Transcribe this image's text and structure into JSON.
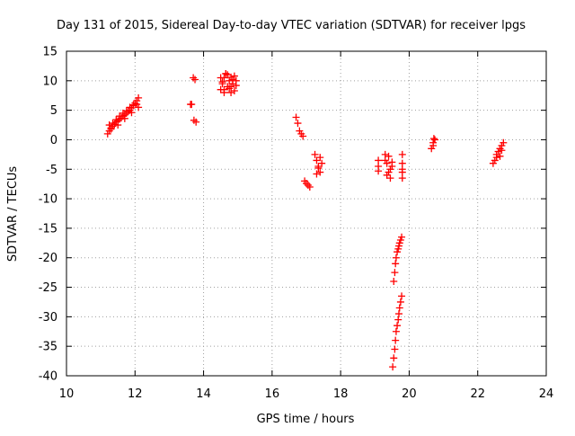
{
  "chart_data": {
    "type": "scatter",
    "title": "Day 131 of 2015, Sidereal Day-to-day VTEC variation (SDTVAR) for receiver lpgs",
    "xlabel": "GPS time / hours",
    "ylabel": "SDTVAR / TECUs",
    "xlim": [
      10,
      24
    ],
    "ylim": [
      -40,
      15
    ],
    "xticks": [
      10,
      12,
      14,
      16,
      18,
      20,
      22,
      24
    ],
    "yticks": [
      15,
      10,
      5,
      0,
      -5,
      -10,
      -15,
      -20,
      -25,
      -30,
      -35,
      -40
    ],
    "grid": true,
    "marker": "+",
    "series": [
      {
        "name": "SDTVAR",
        "color": "#ff0000",
        "x": [
          11.2,
          11.25,
          11.3,
          11.35,
          11.4,
          11.45,
          11.5,
          11.55,
          11.6,
          11.65,
          11.7,
          11.75,
          11.8,
          11.85,
          11.9,
          11.95,
          12.0,
          12.05,
          12.1,
          11.25,
          11.35,
          11.45,
          11.55,
          11.65,
          11.75,
          11.85,
          11.95,
          12.05,
          11.3,
          11.5,
          11.7,
          11.9,
          12.1,
          13.65,
          13.7,
          13.75,
          13.72,
          13.78,
          13.62,
          14.5,
          14.55,
          14.6,
          14.65,
          14.7,
          14.75,
          14.8,
          14.85,
          14.9,
          14.95,
          14.5,
          14.6,
          14.7,
          14.8,
          14.9,
          14.55,
          14.65,
          14.75,
          14.85,
          14.95,
          14.6,
          14.8,
          16.7,
          16.75,
          16.8,
          16.85,
          16.9,
          16.95,
          17.0,
          17.05,
          17.1,
          17.25,
          17.3,
          17.35,
          17.4,
          17.45,
          17.3,
          17.4,
          17.35,
          19.1,
          19.1,
          19.1,
          19.3,
          19.35,
          19.4,
          19.45,
          19.3,
          19.4,
          19.45,
          19.35,
          19.5,
          19.5,
          19.8,
          19.8,
          19.8,
          19.8,
          19.8,
          19.55,
          19.58,
          19.6,
          19.62,
          19.65,
          19.68,
          19.7,
          19.72,
          19.75,
          19.78,
          19.52,
          19.55,
          19.58,
          19.6,
          19.62,
          19.65,
          19.68,
          19.7,
          19.72,
          19.75,
          19.78,
          20.65,
          20.7,
          20.75,
          20.7,
          20.72,
          22.45,
          22.5,
          22.55,
          22.6,
          22.65,
          22.7,
          22.75,
          22.55,
          22.65,
          22.7
        ],
        "y": [
          1.0,
          1.5,
          2.0,
          2.3,
          2.6,
          3.0,
          3.2,
          3.5,
          3.7,
          4.0,
          4.2,
          4.5,
          4.8,
          5.0,
          5.4,
          5.8,
          6.2,
          6.6,
          7.1,
          2.5,
          2.8,
          3.4,
          4.0,
          4.5,
          4.9,
          5.5,
          5.9,
          6.0,
          1.8,
          2.5,
          3.6,
          4.6,
          5.5,
          6.0,
          10.5,
          10.2,
          3.3,
          3.0,
          6.0,
          8.5,
          9.5,
          10.5,
          11.2,
          9.0,
          10.0,
          8.0,
          9.5,
          10.8,
          10.0,
          10.5,
          8.5,
          11.0,
          9.0,
          8.3,
          9.8,
          11.2,
          8.7,
          10.2,
          9.2,
          8.0,
          10.6,
          3.8,
          2.8,
          1.5,
          1.0,
          0.6,
          -7.0,
          -7.4,
          -7.7,
          -8.0,
          -2.5,
          -3.5,
          -4.5,
          -5.5,
          -4.0,
          -5.8,
          -3.0,
          -4.8,
          -3.5,
          -4.5,
          -5.3,
          -2.5,
          -4.0,
          -5.5,
          -6.5,
          -3.5,
          -2.8,
          -5.0,
          -6.0,
          -3.8,
          -4.5,
          -2.5,
          -4.0,
          -5.0,
          -5.5,
          -6.5,
          -24.0,
          -22.5,
          -21.0,
          -20.0,
          -19.0,
          -18.5,
          -18.0,
          -17.5,
          -17.0,
          -16.5,
          -38.5,
          -37.0,
          -35.5,
          -34.0,
          -32.5,
          -31.5,
          -30.5,
          -29.5,
          -28.5,
          -27.5,
          -26.5,
          -1.5,
          -0.5,
          0.0,
          -1.0,
          0.2,
          -4.0,
          -3.5,
          -2.5,
          -2.0,
          -1.5,
          -1.0,
          -0.5,
          -3.0,
          -2.8,
          -1.8
        ]
      }
    ]
  }
}
